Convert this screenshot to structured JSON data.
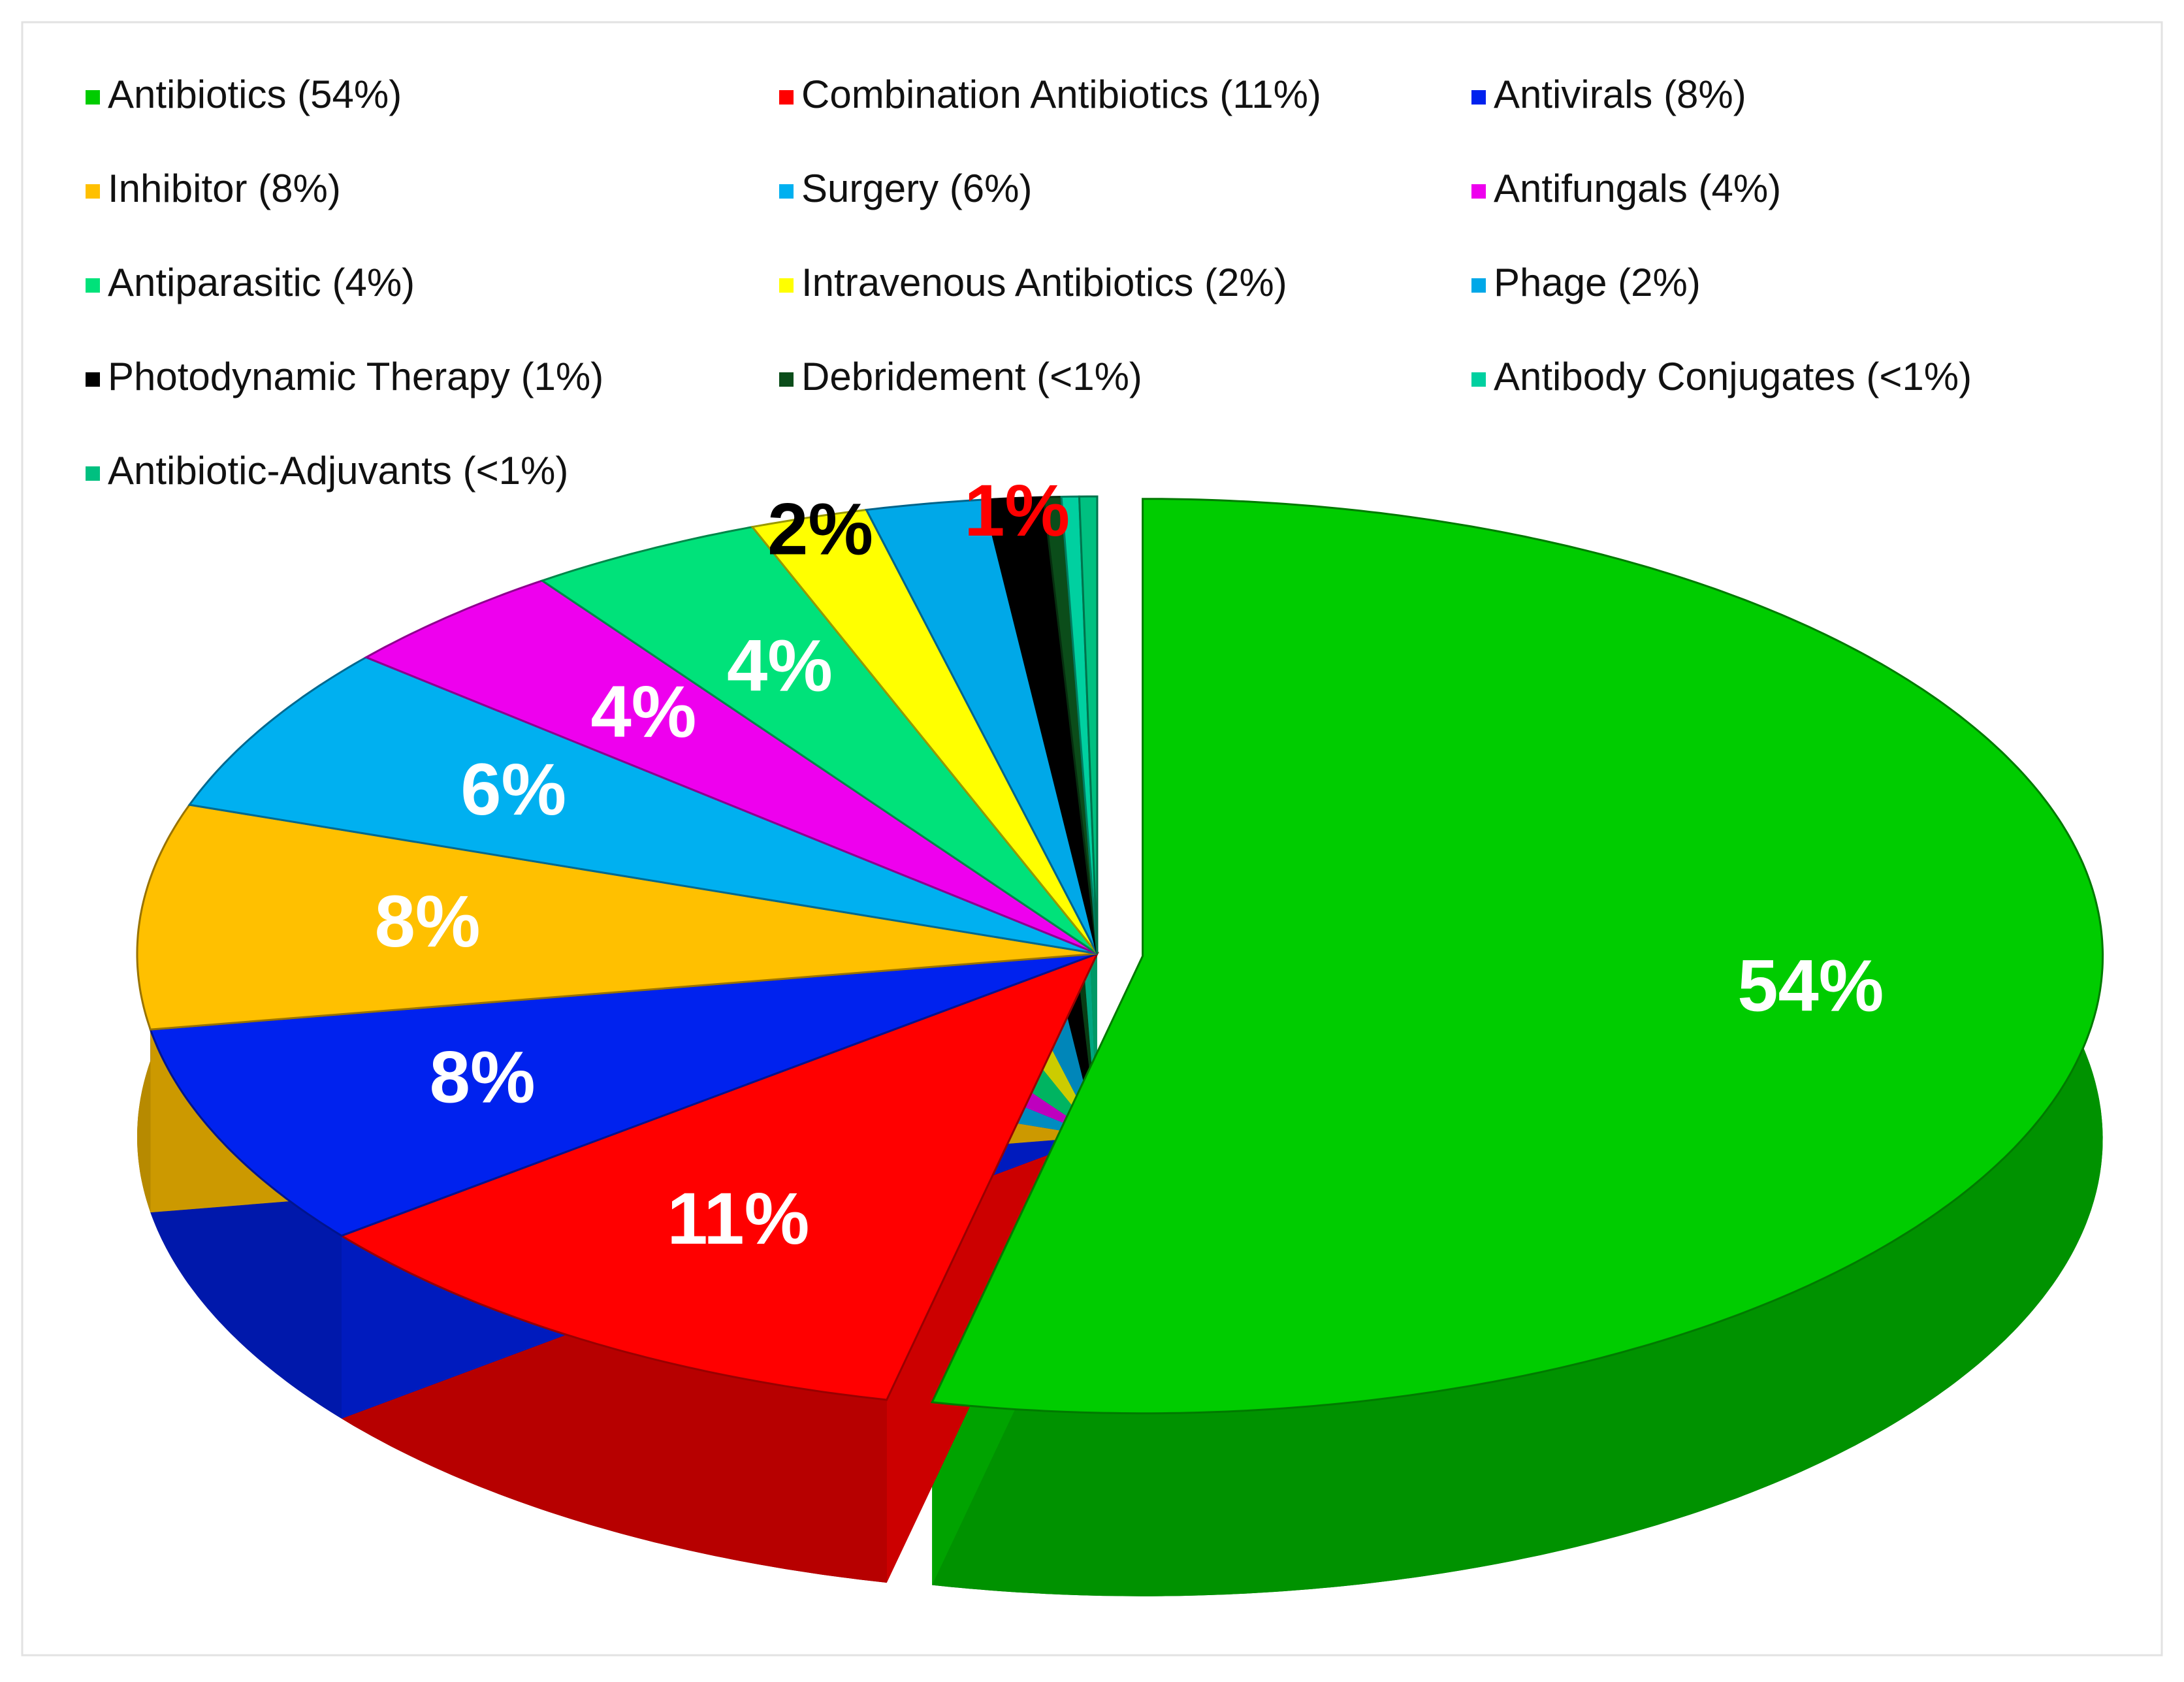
{
  "chart_data": {
    "type": "pie",
    "categories": [
      "Antibiotics (54%)",
      "Combination Antibiotics (11%)",
      "Antivirals (8%)",
      "Inhibitor (8%)",
      "Surgery (6%)",
      "Antifungals (4%)",
      "Antiparasitic (4%)",
      "Intravenous Antibiotics (2%)",
      "Phage (2%)",
      "Photodynamic Therapy (1%)",
      "Debridement (<1%)",
      "Antibody Conjugates (<1%)",
      "Antibiotic-Adjuvants (<1%)"
    ],
    "values": [
      54,
      11,
      8,
      8,
      6,
      4,
      4,
      2,
      2,
      1,
      0.3,
      0.3,
      0.3
    ],
    "value_labels": [
      "54%",
      "11%",
      "8%",
      "8%",
      "6%",
      "4%",
      "4%",
      "2%",
      null,
      "1%",
      null,
      null,
      null
    ],
    "colors": [
      "#00cc00",
      "#ff0000",
      "#0022ee",
      "#ffc000",
      "#00b0f0",
      "#ee00ee",
      "#00e27a",
      "#ffff00",
      "#00a8e8",
      "#000000",
      "#0b4d1a",
      "#00d0a0",
      "#00c080"
    ],
    "value_label_colors": [
      "#ffffff",
      "#ffffff",
      "#ffffff",
      "#ffffff",
      "#ffffff",
      "#ffffff",
      "#ffffff",
      "#000000",
      null,
      "#ff0000",
      null,
      null,
      null
    ],
    "legend": "top"
  }
}
